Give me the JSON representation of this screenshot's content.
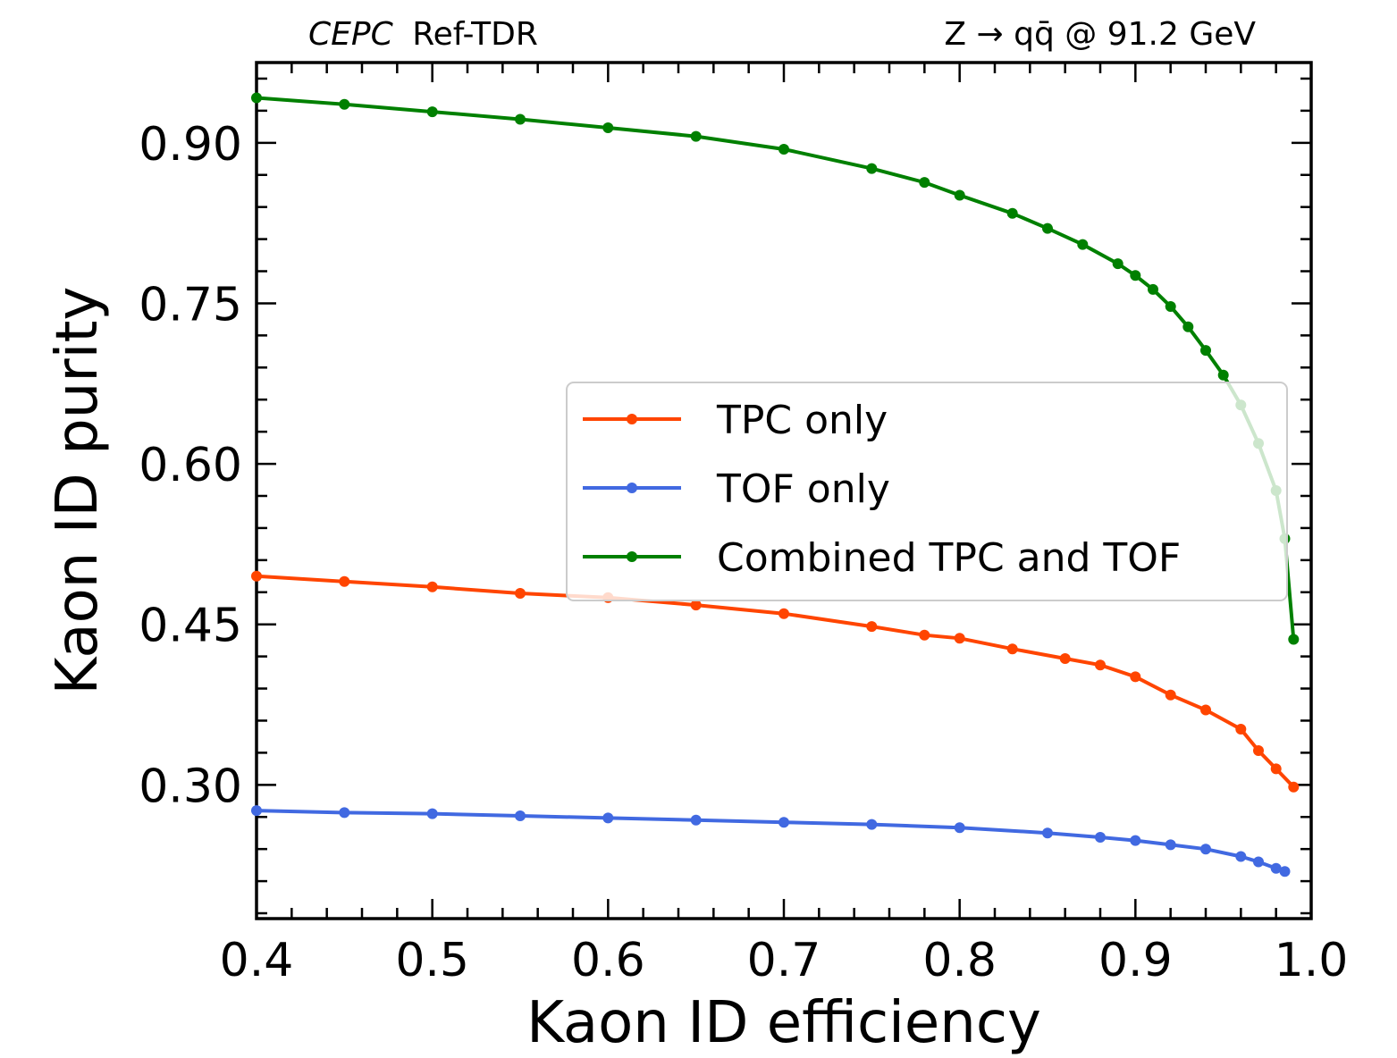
{
  "header": {
    "experiment": "CEPC",
    "label": "Ref-TDR",
    "process": "Z → qq̄ @ 91.2 GeV"
  },
  "chart_data": {
    "type": "line",
    "xlabel": "Kaon ID efficiency",
    "ylabel": "Kaon ID purity",
    "xlim": [
      0.4,
      1.0
    ],
    "ylim": [
      0.175,
      0.975
    ],
    "xticks": [
      "0.4",
      "0.5",
      "0.6",
      "0.7",
      "0.8",
      "0.9",
      "1.0"
    ],
    "yticks": [
      "0.30",
      "0.45",
      "0.60",
      "0.75",
      "0.90"
    ],
    "grid": false,
    "legend_position": "center-right",
    "series": [
      {
        "name": "TPC only",
        "color": "#ff4500",
        "x": [
          0.4,
          0.45,
          0.5,
          0.55,
          0.6,
          0.65,
          0.7,
          0.75,
          0.78,
          0.8,
          0.83,
          0.86,
          0.88,
          0.9,
          0.92,
          0.94,
          0.96,
          0.97,
          0.98,
          0.99
        ],
        "y": [
          0.495,
          0.49,
          0.485,
          0.479,
          0.475,
          0.468,
          0.46,
          0.448,
          0.44,
          0.437,
          0.427,
          0.418,
          0.412,
          0.401,
          0.384,
          0.37,
          0.352,
          0.332,
          0.315,
          0.298
        ]
      },
      {
        "name": "TOF only",
        "color": "#4169e1",
        "x": [
          0.4,
          0.45,
          0.5,
          0.55,
          0.6,
          0.65,
          0.7,
          0.75,
          0.8,
          0.85,
          0.88,
          0.9,
          0.92,
          0.94,
          0.96,
          0.97,
          0.98,
          0.985
        ],
        "y": [
          0.276,
          0.274,
          0.273,
          0.271,
          0.269,
          0.267,
          0.265,
          0.263,
          0.26,
          0.255,
          0.251,
          0.248,
          0.244,
          0.24,
          0.233,
          0.228,
          0.222,
          0.219
        ]
      },
      {
        "name": "Combined TPC and TOF",
        "color": "#008000",
        "x": [
          0.4,
          0.45,
          0.5,
          0.55,
          0.6,
          0.65,
          0.7,
          0.75,
          0.78,
          0.8,
          0.83,
          0.85,
          0.87,
          0.89,
          0.9,
          0.91,
          0.92,
          0.93,
          0.94,
          0.95,
          0.96,
          0.97,
          0.98,
          0.985,
          0.99
        ],
        "y": [
          0.942,
          0.936,
          0.929,
          0.922,
          0.914,
          0.906,
          0.894,
          0.876,
          0.863,
          0.851,
          0.834,
          0.82,
          0.805,
          0.787,
          0.776,
          0.763,
          0.747,
          0.728,
          0.706,
          0.683,
          0.655,
          0.619,
          0.575,
          0.53,
          0.436
        ]
      }
    ]
  }
}
